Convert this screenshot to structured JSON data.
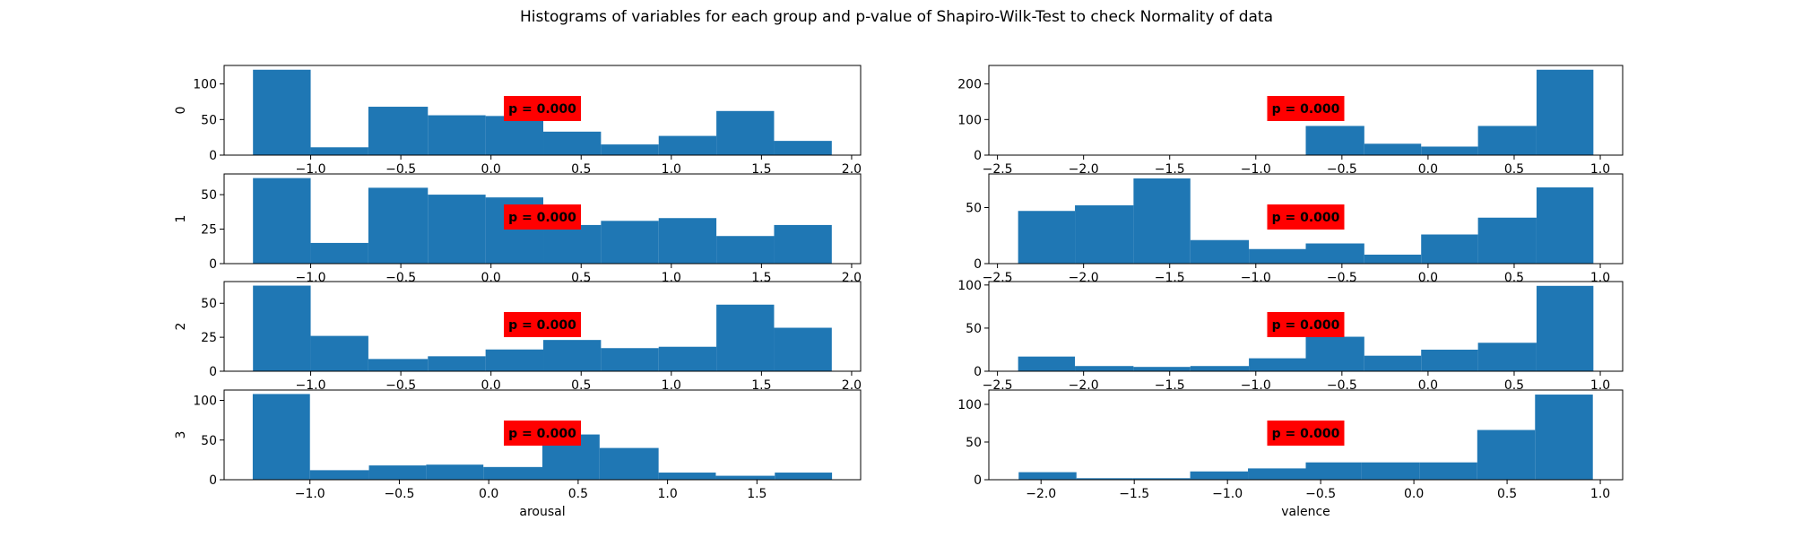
{
  "title": "Histograms of variables for each group and p-value of Shapiro-Wilk-Test to check Normality of data",
  "colors": {
    "bar": "#1f77b4",
    "annotation_box": "#ff0000"
  },
  "chart_data": [
    {
      "type": "bar",
      "group": "0",
      "variable": "arousal",
      "ylabel": "0",
      "xlabel": "",
      "bin_edges": [
        -1.32,
        -1.0,
        -0.68,
        -0.35,
        -0.03,
        0.29,
        0.61,
        0.93,
        1.25,
        1.57,
        1.89
      ],
      "values": [
        120,
        11,
        68,
        56,
        55,
        33,
        15,
        27,
        62,
        20
      ],
      "xlim": [
        -1.48,
        2.05
      ],
      "ylim": [
        0,
        126
      ],
      "xticks": [
        -1.0,
        -0.5,
        0.0,
        0.5,
        1.0,
        1.5,
        2.0
      ],
      "xtick_labels": [
        "−1.0",
        "−0.5",
        "0.0",
        "0.5",
        "1.0",
        "1.5",
        "2.0"
      ],
      "yticks": [
        0,
        50,
        100
      ],
      "ytick_labels": [
        "0",
        "50",
        "100"
      ],
      "annotation": "p = 0.000"
    },
    {
      "type": "bar",
      "group": "0",
      "variable": "valence",
      "ylabel": "",
      "xlabel": "",
      "bin_edges": [
        -2.38,
        -2.05,
        -1.71,
        -1.38,
        -1.04,
        -0.71,
        -0.37,
        -0.04,
        0.29,
        0.63,
        0.96
      ],
      "values": [
        0,
        0,
        0,
        0,
        0,
        82,
        32,
        24,
        82,
        240
      ],
      "xlim": [
        -2.55,
        1.13
      ],
      "ylim": [
        0,
        252
      ],
      "xticks": [
        -2.5,
        -2.0,
        -1.5,
        -1.0,
        -0.5,
        0.0,
        0.5,
        1.0
      ],
      "xtick_labels": [
        "−2.5",
        "−2.0",
        "−1.5",
        "−1.0",
        "−0.5",
        "0.0",
        "0.5",
        "1.0"
      ],
      "yticks": [
        0,
        100,
        200
      ],
      "ytick_labels": [
        "0",
        "100",
        "200"
      ],
      "annotation": "p = 0.000"
    },
    {
      "type": "bar",
      "group": "1",
      "variable": "arousal",
      "ylabel": "1",
      "xlabel": "",
      "bin_edges": [
        -1.32,
        -1.0,
        -0.68,
        -0.35,
        -0.03,
        0.29,
        0.61,
        0.93,
        1.25,
        1.57,
        1.89
      ],
      "values": [
        62,
        15,
        55,
        50,
        48,
        28,
        31,
        33,
        20,
        28
      ],
      "xlim": [
        -1.48,
        2.05
      ],
      "ylim": [
        0,
        65
      ],
      "xticks": [
        -1.0,
        -0.5,
        0.0,
        0.5,
        1.0,
        1.5,
        2.0
      ],
      "xtick_labels": [
        "−1.0",
        "−0.5",
        "0.0",
        "0.5",
        "1.0",
        "1.5",
        "2.0"
      ],
      "yticks": [
        0,
        25,
        50
      ],
      "ytick_labels": [
        "0",
        "25",
        "50"
      ],
      "annotation": "p = 0.000"
    },
    {
      "type": "bar",
      "group": "1",
      "variable": "valence",
      "ylabel": "",
      "xlabel": "",
      "bin_edges": [
        -2.38,
        -2.05,
        -1.71,
        -1.38,
        -1.04,
        -0.71,
        -0.37,
        -0.04,
        0.29,
        0.63,
        0.96
      ],
      "values": [
        47,
        52,
        76,
        21,
        13,
        18,
        8,
        26,
        41,
        68
      ],
      "xlim": [
        -2.55,
        1.13
      ],
      "ylim": [
        0,
        80
      ],
      "xticks": [
        -2.5,
        -2.0,
        -1.5,
        -1.0,
        -0.5,
        0.0,
        0.5,
        1.0
      ],
      "xtick_labels": [
        "−2.5",
        "−2.0",
        "−1.5",
        "−1.0",
        "−0.5",
        "0.0",
        "0.5",
        "1.0"
      ],
      "yticks": [
        0,
        50
      ],
      "ytick_labels": [
        "0",
        "50"
      ],
      "annotation": "p = 0.000"
    },
    {
      "type": "bar",
      "group": "2",
      "variable": "arousal",
      "ylabel": "2",
      "xlabel": "",
      "bin_edges": [
        -1.32,
        -1.0,
        -0.68,
        -0.35,
        -0.03,
        0.29,
        0.61,
        0.93,
        1.25,
        1.57,
        1.89
      ],
      "values": [
        63,
        26,
        9,
        11,
        16,
        23,
        17,
        18,
        49,
        32
      ],
      "xlim": [
        -1.48,
        2.05
      ],
      "ylim": [
        0,
        66
      ],
      "xticks": [
        -1.0,
        -0.5,
        0.0,
        0.5,
        1.0,
        1.5,
        2.0
      ],
      "xtick_labels": [
        "−1.0",
        "−0.5",
        "0.0",
        "0.5",
        "1.0",
        "1.5",
        "2.0"
      ],
      "yticks": [
        0,
        25,
        50
      ],
      "ytick_labels": [
        "0",
        "25",
        "50"
      ],
      "annotation": "p = 0.000"
    },
    {
      "type": "bar",
      "group": "2",
      "variable": "valence",
      "ylabel": "",
      "xlabel": "",
      "bin_edges": [
        -2.38,
        -2.05,
        -1.71,
        -1.38,
        -1.04,
        -0.71,
        -0.37,
        -0.04,
        0.29,
        0.63,
        0.96
      ],
      "values": [
        17,
        6,
        5,
        6,
        15,
        40,
        18,
        25,
        33,
        99
      ],
      "xlim": [
        -2.55,
        1.13
      ],
      "ylim": [
        0,
        104
      ],
      "xticks": [
        -2.5,
        -2.0,
        -1.5,
        -1.0,
        -0.5,
        0.0,
        0.5,
        1.0
      ],
      "xtick_labels": [
        "−2.5",
        "−2.0",
        "−1.5",
        "−1.0",
        "−0.5",
        "0.0",
        "0.5",
        "1.0"
      ],
      "yticks": [
        0,
        50,
        100
      ],
      "ytick_labels": [
        "0",
        "50",
        "100"
      ],
      "annotation": "p = 0.000"
    },
    {
      "type": "bar",
      "group": "3",
      "variable": "arousal",
      "ylabel": "3",
      "xlabel": "arousal",
      "bin_edges": [
        -1.32,
        -1.0,
        -0.67,
        -0.35,
        -0.03,
        0.3,
        0.62,
        0.95,
        1.27,
        1.6,
        1.92
      ],
      "values": [
        108,
        12,
        18,
        19,
        16,
        57,
        40,
        9,
        5,
        9
      ],
      "xlim": [
        -1.48,
        2.08
      ],
      "ylim": [
        0,
        113
      ],
      "xticks": [
        -1.0,
        -0.5,
        0.0,
        0.5,
        1.0,
        1.5
      ],
      "xtick_labels": [
        "−1.0",
        "−0.5",
        "0.0",
        "0.5",
        "1.0",
        "1.5"
      ],
      "yticks": [
        0,
        50,
        100
      ],
      "ytick_labels": [
        "0",
        "50",
        "100"
      ],
      "annotation": "p = 0.000"
    },
    {
      "type": "bar",
      "group": "3",
      "variable": "valence",
      "ylabel": "",
      "xlabel": "valence",
      "bin_edges": [
        -2.12,
        -1.81,
        -1.51,
        -1.2,
        -0.89,
        -0.58,
        -0.28,
        0.03,
        0.34,
        0.65,
        0.96
      ],
      "values": [
        10,
        2,
        2,
        11,
        15,
        23,
        23,
        23,
        66,
        113
      ],
      "xlim": [
        -2.28,
        1.12
      ],
      "ylim": [
        0,
        119
      ],
      "xticks": [
        -2.0,
        -1.5,
        -1.0,
        -0.5,
        0.0,
        0.5,
        1.0
      ],
      "xtick_labels": [
        "−2.0",
        "−1.5",
        "−1.0",
        "−0.5",
        "0.0",
        "0.5",
        "1.0"
      ],
      "yticks": [
        0,
        50,
        100
      ],
      "ytick_labels": [
        "0",
        "50",
        "100"
      ],
      "annotation": "p = 0.000"
    }
  ]
}
